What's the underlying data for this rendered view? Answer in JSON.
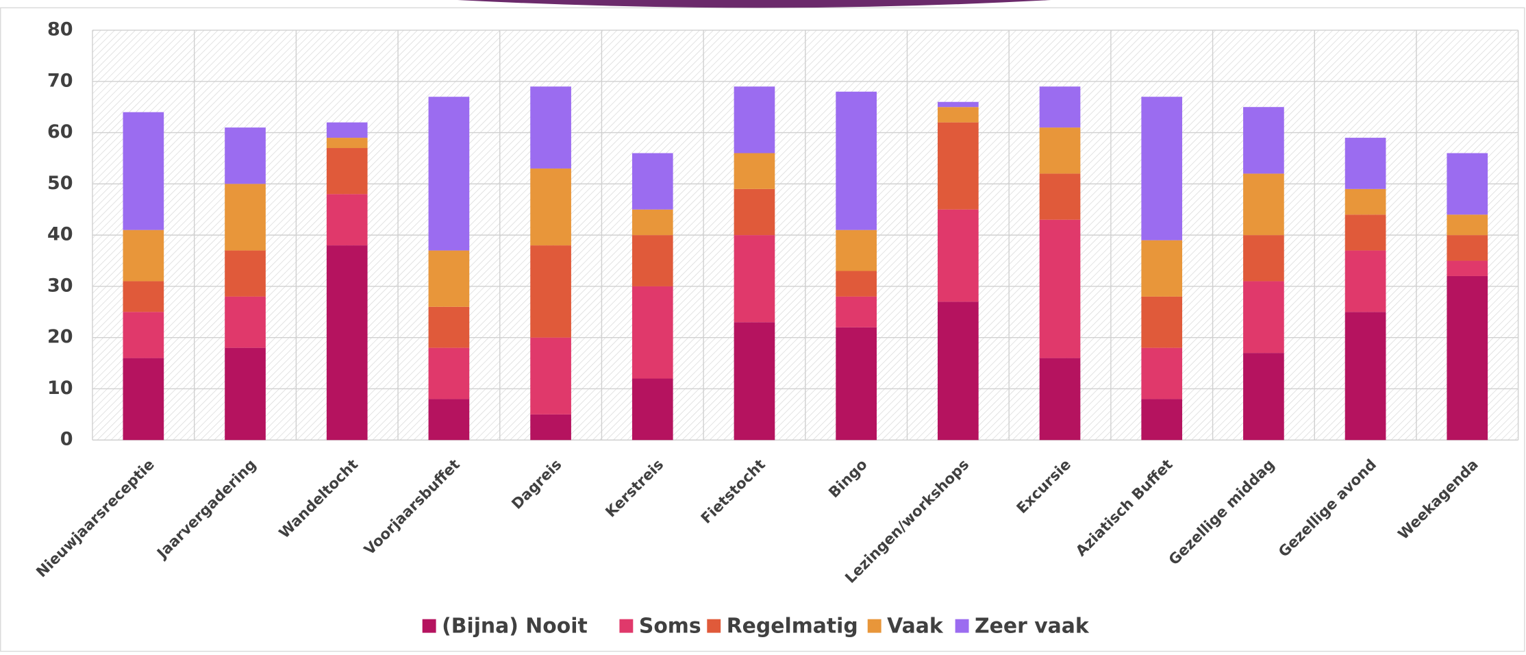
{
  "chart_data": {
    "type": "stacked_bar",
    "categories": [
      "Nieuwjaarsreceptie",
      "Jaarvergadering",
      "Wandeltocht",
      "Voorjaarsbuffet",
      "Dagreis",
      "Kerstreis",
      "Fietstocht",
      "Bingo",
      "Lezingen/workshops",
      "Excursie",
      "Aziatisch Buffet",
      "Gezellige middag",
      "Gezellige avond",
      "Weekagenda"
    ],
    "series": [
      {
        "name": "(Bijna) Nooit",
        "color": "#b5135f",
        "values": [
          16,
          18,
          38,
          8,
          5,
          12,
          23,
          22,
          27,
          16,
          8,
          17,
          25,
          32
        ]
      },
      {
        "name": "Soms",
        "color": "#e0396b",
        "values": [
          9,
          10,
          10,
          10,
          15,
          18,
          17,
          6,
          18,
          27,
          10,
          14,
          12,
          3
        ]
      },
      {
        "name": "Regelmatig",
        "color": "#e05a3a",
        "values": [
          6,
          9,
          9,
          8,
          18,
          10,
          9,
          5,
          17,
          9,
          10,
          9,
          7,
          5
        ]
      },
      {
        "name": "Vaak",
        "color": "#e8963a",
        "values": [
          10,
          13,
          2,
          11,
          15,
          5,
          7,
          8,
          3,
          9,
          11,
          12,
          5,
          4
        ]
      },
      {
        "name": "Zeer vaak",
        "color": "#9b6cf0",
        "values": [
          23,
          11,
          3,
          30,
          16,
          11,
          13,
          27,
          1,
          8,
          28,
          13,
          10,
          12
        ]
      }
    ],
    "ylim": [
      0,
      80
    ],
    "yticks": [
      0,
      10,
      20,
      30,
      40,
      50,
      60,
      70,
      80
    ],
    "grid": true,
    "legend": "bottom"
  }
}
